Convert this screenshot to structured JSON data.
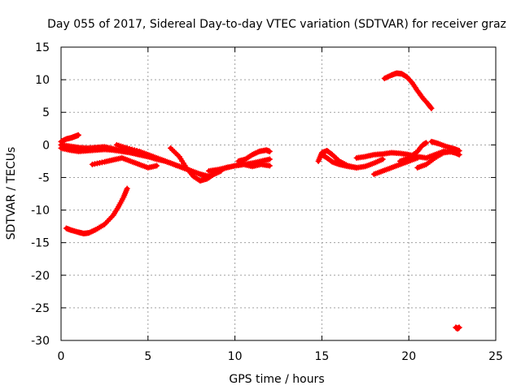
{
  "chart_data": {
    "type": "scatter",
    "title": "Day 055 of 2017, Sidereal Day-to-day VTEC variation (SDTVAR) for receiver graz",
    "xlabel": "GPS time / hours",
    "ylabel": "SDTVAR / TECUs",
    "xlim": [
      0,
      25
    ],
    "ylim": [
      -30,
      15
    ],
    "xticks": [
      0,
      5,
      10,
      15,
      20,
      25
    ],
    "yticks": [
      -30,
      -25,
      -20,
      -15,
      -10,
      -5,
      0,
      5,
      10,
      15
    ],
    "grid": true,
    "legend": "none",
    "marker_color": "#ff0000",
    "series": [
      {
        "name": "trace-1",
        "x": [
          0.0,
          0.3,
          0.6,
          0.8,
          1.0
        ],
        "y": [
          0.5,
          0.9,
          1.1,
          1.3,
          1.5
        ]
      },
      {
        "name": "trace-2",
        "x": [
          0.0,
          0.5,
          1.0,
          1.5,
          2.0,
          2.5,
          3.0,
          3.5,
          4.0,
          4.5,
          5.0,
          5.5,
          6.0,
          6.5,
          7.0,
          7.5,
          8.0,
          8.5,
          9.0,
          9.5,
          10.0,
          10.5,
          11.0,
          11.5,
          12.0
        ],
        "y": [
          0.0,
          -0.2,
          -0.4,
          -0.5,
          -0.4,
          -0.3,
          -0.6,
          -0.9,
          -1.2,
          -1.5,
          -1.8,
          -2.2,
          -2.5,
          -3.0,
          -3.5,
          -4.0,
          -4.5,
          -4.8,
          -4.0,
          -3.5,
          -3.2,
          -3.0,
          -2.8,
          -2.5,
          -2.2
        ]
      },
      {
        "name": "trace-3",
        "x": [
          0.0,
          0.5,
          1.0,
          1.5,
          2.0,
          2.5,
          3.0,
          3.5,
          4.0,
          4.5,
          5.0
        ],
        "y": [
          -0.5,
          -0.8,
          -1.0,
          -0.9,
          -0.8,
          -0.7,
          -0.8,
          -1.0,
          -1.2,
          -1.5,
          -1.8
        ]
      },
      {
        "name": "trace-4",
        "x": [
          1.8,
          2.5,
          3.0,
          3.5,
          4.0,
          4.5,
          5.0,
          5.5
        ],
        "y": [
          -3.0,
          -2.6,
          -2.3,
          -2.0,
          -2.5,
          -3.0,
          -3.5,
          -3.2
        ]
      },
      {
        "name": "trace-5",
        "x": [
          3.2,
          3.8,
          4.5,
          5.0,
          5.5,
          6.0,
          6.5,
          7.0,
          7.5,
          8.0,
          8.5
        ],
        "y": [
          0.0,
          -0.5,
          -1.0,
          -1.5,
          -2.0,
          -2.5,
          -3.0,
          -3.5,
          -4.0,
          -4.5,
          -5.0
        ]
      },
      {
        "name": "trace-6",
        "x": [
          6.3,
          6.8,
          7.2,
          7.6,
          8.0,
          8.4,
          8.8,
          9.2
        ],
        "y": [
          -0.5,
          -1.8,
          -3.5,
          -4.8,
          -5.5,
          -5.2,
          -4.5,
          -4.0
        ]
      },
      {
        "name": "trace-7",
        "x": [
          8.5,
          9.0,
          9.5,
          10.0,
          10.5,
          11.0,
          11.5,
          12.0
        ],
        "y": [
          -4.0,
          -3.8,
          -3.5,
          -3.2,
          -3.0,
          -3.3,
          -3.0,
          -3.2
        ]
      },
      {
        "name": "trace-8",
        "x": [
          10.2,
          10.6,
          11.0,
          11.4,
          11.8,
          12.0
        ],
        "y": [
          -2.5,
          -2.2,
          -1.5,
          -1.0,
          -0.8,
          -1.0
        ]
      },
      {
        "name": "trace-9",
        "x": [
          0.3,
          0.6,
          1.0,
          1.3,
          1.6,
          2.0,
          2.5,
          3.0,
          3.3,
          3.6,
          3.8
        ],
        "y": [
          -12.8,
          -13.1,
          -13.4,
          -13.6,
          -13.5,
          -13.0,
          -12.2,
          -10.8,
          -9.5,
          -8.0,
          -6.7
        ]
      },
      {
        "name": "trace-10",
        "x": [
          14.8,
          15.0,
          15.3,
          15.6,
          16.0,
          16.5,
          17.0,
          17.5,
          18.0,
          18.5
        ],
        "y": [
          -2.5,
          -1.2,
          -0.9,
          -1.5,
          -2.5,
          -3.2,
          -3.5,
          -3.3,
          -2.8,
          -2.2
        ]
      },
      {
        "name": "trace-11",
        "x": [
          15.0,
          15.3,
          15.6,
          16.0,
          16.5,
          17.0
        ],
        "y": [
          -1.5,
          -2.0,
          -2.6,
          -3.0,
          -3.3,
          -3.5
        ]
      },
      {
        "name": "trace-12",
        "x": [
          17.0,
          17.5,
          18.0,
          18.5,
          19.0,
          19.5,
          20.0,
          20.5,
          21.0,
          21.5,
          22.0,
          22.5,
          22.8
        ],
        "y": [
          -2.0,
          -1.8,
          -1.5,
          -1.4,
          -1.2,
          -1.3,
          -1.5,
          -1.8,
          -2.0,
          -1.5,
          -1.0,
          -1.1,
          -1.3
        ]
      },
      {
        "name": "trace-13",
        "x": [
          18.0,
          18.5,
          19.0,
          19.5,
          20.0,
          20.5
        ],
        "y": [
          -4.5,
          -4.0,
          -3.5,
          -3.0,
          -2.5,
          -2.0
        ]
      },
      {
        "name": "trace-14",
        "x": [
          19.5,
          20.0,
          20.5,
          20.8,
          21.0
        ],
        "y": [
          -2.5,
          -2.0,
          -1.0,
          0.0,
          0.3
        ]
      },
      {
        "name": "trace-15",
        "x": [
          20.5,
          21.0,
          21.5,
          22.0,
          22.5,
          22.9
        ],
        "y": [
          -3.5,
          -3.0,
          -2.0,
          -1.2,
          -1.0,
          -1.5
        ]
      },
      {
        "name": "trace-16",
        "x": [
          21.3,
          21.7,
          22.2,
          22.6,
          22.9
        ],
        "y": [
          0.5,
          0.2,
          -0.3,
          -0.6,
          -0.9
        ]
      },
      {
        "name": "trace-17",
        "x": [
          18.6,
          19.0,
          19.3,
          19.6,
          19.9,
          20.2,
          20.5,
          20.8,
          21.1,
          21.3
        ],
        "y": [
          10.2,
          10.7,
          11.0,
          10.9,
          10.4,
          9.5,
          8.3,
          7.2,
          6.3,
          5.6
        ]
      },
      {
        "name": "trace-18",
        "x": [
          22.7,
          22.8,
          22.9
        ],
        "y": [
          -28.0,
          -28.2,
          -28.0
        ]
      }
    ]
  }
}
